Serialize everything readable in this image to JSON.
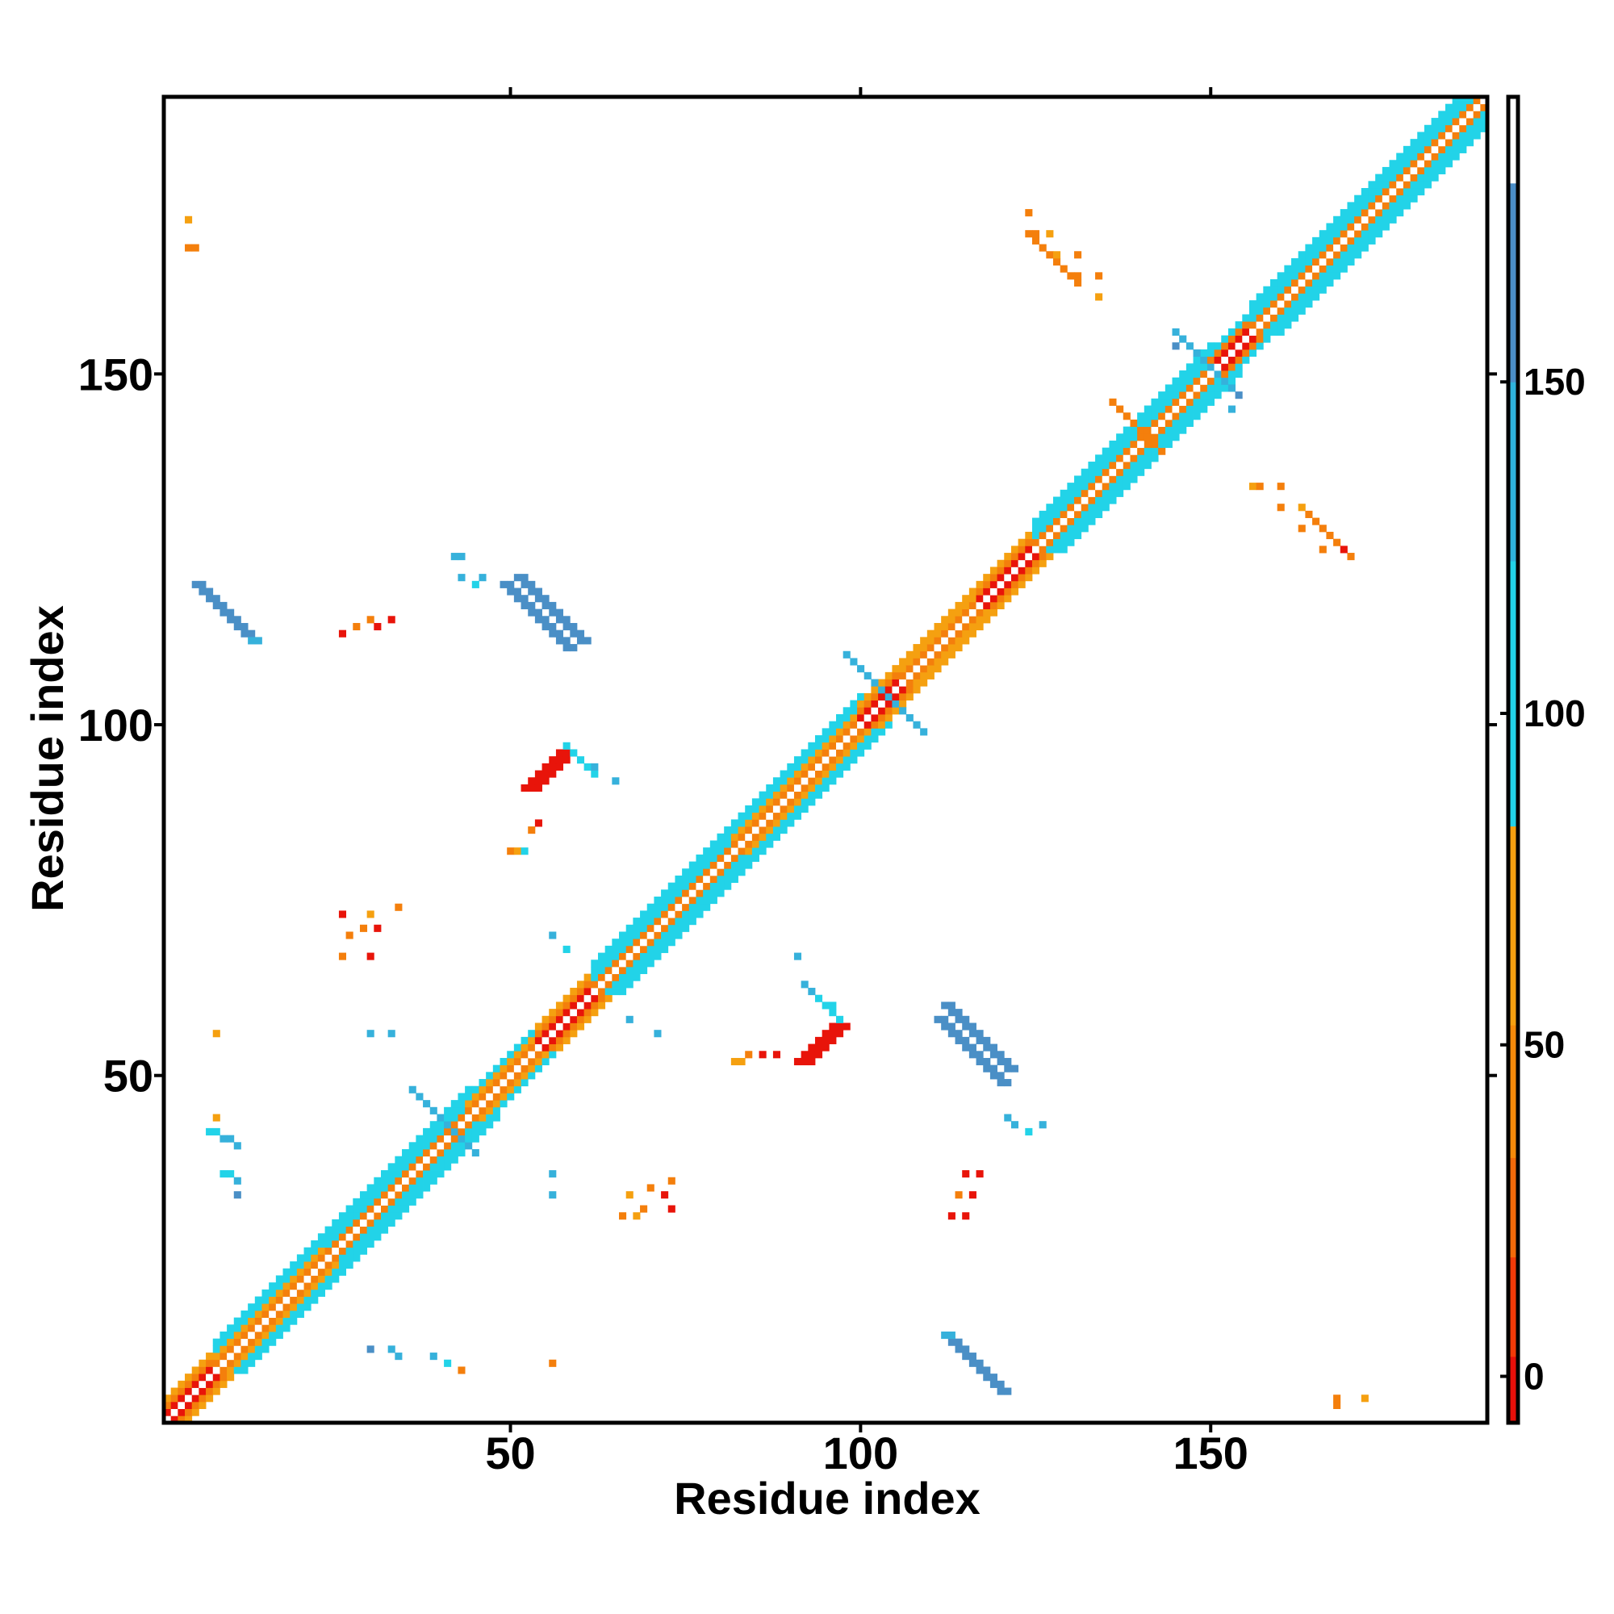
{
  "chart_data": {
    "type": "heatmap",
    "title": "",
    "xlabel": "Residue index",
    "ylabel": "Residue index",
    "xlim": [
      0.5,
      189.5
    ],
    "ylim": [
      0.5,
      189.5
    ],
    "n_residues": 189,
    "x_ticks": [
      "50",
      "100",
      "150"
    ],
    "y_ticks": [
      "50",
      "100",
      "150"
    ],
    "x_tick_values": [
      50,
      100,
      150
    ],
    "y_tick_values": [
      50,
      100,
      150
    ],
    "colorbar": {
      "ticks": [
        "0",
        "50",
        "100",
        "150"
      ],
      "tick_values": [
        0,
        50,
        100,
        150
      ],
      "range": [
        -7,
        193
      ],
      "bands": [
        {
          "from": -7,
          "to": 3,
          "color": "#e8100a"
        },
        {
          "from": 3,
          "to": 18,
          "color": "#f23a08"
        },
        {
          "from": 18,
          "to": 33,
          "color": "#f26a0a"
        },
        {
          "from": 33,
          "to": 53,
          "color": "#f58a0a"
        },
        {
          "from": 53,
          "to": 83,
          "color": "#f5a010"
        },
        {
          "from": 83,
          "to": 123,
          "color": "#22d3e8"
        },
        {
          "from": 123,
          "to": 150,
          "color": "#2fb3dc"
        },
        {
          "from": 150,
          "to": 180,
          "color": "#4b8ec8"
        },
        {
          "from": 180,
          "to": 193,
          "color": "#ffffff"
        }
      ]
    },
    "colors": {
      "red": "#e8140a",
      "redorange": "#f24a08",
      "orange": "#f47f0c",
      "amber": "#f5a010",
      "cyan": "#22d3e8",
      "skyblue": "#36b1db",
      "steelblue": "#4a8fc6"
    },
    "diagonal_bands": [
      {
        "from": 1,
        "to": 8,
        "core": "red",
        "inner": "orange",
        "outer": "amber"
      },
      {
        "from": 8,
        "to": 24,
        "core": "orange",
        "inner": "amber",
        "outer": "cyan"
      },
      {
        "from": 24,
        "to": 44,
        "core": "orange",
        "inner": "cyan",
        "outer": "cyan"
      },
      {
        "from": 44,
        "to": 54,
        "core": "orange",
        "inner": "amber",
        "outer": "cyan"
      },
      {
        "from": 54,
        "to": 62,
        "core": "red",
        "inner": "orange",
        "outer": "amber"
      },
      {
        "from": 62,
        "to": 82,
        "core": "orange",
        "inner": "cyan",
        "outer": "cyan"
      },
      {
        "from": 82,
        "to": 100,
        "core": "orange",
        "inner": "amber",
        "outer": "cyan"
      },
      {
        "from": 100,
        "to": 106,
        "core": "red",
        "inner": "orange",
        "outer": "amber"
      },
      {
        "from": 106,
        "to": 117,
        "core": "orange",
        "inner": "amber",
        "outer": "amber"
      },
      {
        "from": 117,
        "to": 125,
        "core": "red",
        "inner": "orange",
        "outer": "amber"
      },
      {
        "from": 125,
        "to": 150,
        "core": "orange",
        "inner": "cyan",
        "outer": "cyan"
      },
      {
        "from": 150,
        "to": 156,
        "core": "red",
        "inner": "orange",
        "outer": "cyan"
      },
      {
        "from": 156,
        "to": 189,
        "core": "orange",
        "inner": "cyan",
        "outer": "cyan"
      }
    ],
    "offdiagonal_segments": [
      {
        "x": 6,
        "y": 119,
        "dx": 1,
        "dy": -1,
        "n": 8,
        "w": 2,
        "color": "skyblue"
      },
      {
        "x": 119,
        "y": 6,
        "dx": -1,
        "dy": 1,
        "n": 8,
        "w": 2,
        "color": "skyblue"
      },
      {
        "x": 49,
        "y": 120,
        "dx": 1,
        "dy": -1,
        "n": 10,
        "w": 2,
        "color": "steelblue"
      },
      {
        "x": 120,
        "y": 49,
        "dx": -1,
        "dy": 1,
        "n": 10,
        "w": 2,
        "color": "steelblue"
      },
      {
        "x": 112,
        "y": 60,
        "dx": 1,
        "dy": -1,
        "n": 10,
        "w": 2,
        "color": "steelblue"
      },
      {
        "x": 60,
        "y": 112,
        "dx": -1,
        "dy": 1,
        "n": 10,
        "w": 2,
        "color": "steelblue"
      },
      {
        "x": 113,
        "y": 12,
        "dx": 1,
        "dy": -1,
        "n": 8,
        "w": 2,
        "color": "steelblue"
      },
      {
        "x": 12,
        "y": 113,
        "dx": -1,
        "dy": 1,
        "n": 8,
        "w": 2,
        "color": "steelblue"
      },
      {
        "x": 52,
        "y": 91,
        "dx": 1,
        "dy": 1,
        "n": 6,
        "w": 3,
        "color": "red"
      },
      {
        "x": 91,
        "y": 52,
        "dx": 1,
        "dy": 1,
        "n": 6,
        "w": 3,
        "color": "red"
      },
      {
        "x": 58,
        "y": 97,
        "dx": 1,
        "dy": -1,
        "n": 5,
        "w": 1,
        "color": "cyan"
      },
      {
        "x": 97,
        "y": 58,
        "dx": -1,
        "dy": 1,
        "n": 5,
        "w": 1,
        "color": "cyan"
      },
      {
        "x": 98,
        "y": 110,
        "dx": 1,
        "dy": -1,
        "n": 12,
        "w": 1,
        "color": "skyblue"
      },
      {
        "x": 36,
        "y": 48,
        "dx": 1,
        "dy": -1,
        "n": 10,
        "w": 1,
        "color": "skyblue"
      },
      {
        "x": 145,
        "y": 156,
        "dx": 1,
        "dy": -1,
        "n": 10,
        "w": 1,
        "color": "skyblue"
      },
      {
        "x": 136,
        "y": 146,
        "dx": 1,
        "dy": -1,
        "n": 8,
        "w": 1,
        "color": "orange"
      },
      {
        "x": 124,
        "y": 170,
        "dx": 1,
        "dy": -1,
        "n": 8,
        "w": 1,
        "color": "orange"
      },
      {
        "x": 170,
        "y": 124,
        "dx": -1,
        "dy": 1,
        "n": 8,
        "w": 1,
        "color": "orange"
      }
    ],
    "scattered_cells": [
      {
        "x": 4,
        "y": 168,
        "color": "orange"
      },
      {
        "x": 5,
        "y": 168,
        "color": "orange"
      },
      {
        "x": 4,
        "y": 172,
        "color": "amber"
      },
      {
        "x": 26,
        "y": 113,
        "color": "red"
      },
      {
        "x": 28,
        "y": 114,
        "color": "orange"
      },
      {
        "x": 30,
        "y": 115,
        "color": "orange"
      },
      {
        "x": 31,
        "y": 114,
        "color": "red"
      },
      {
        "x": 33,
        "y": 115,
        "color": "red"
      },
      {
        "x": 26,
        "y": 73,
        "color": "red"
      },
      {
        "x": 27,
        "y": 70,
        "color": "orange"
      },
      {
        "x": 29,
        "y": 71,
        "color": "orange"
      },
      {
        "x": 30,
        "y": 73,
        "color": "amber"
      },
      {
        "x": 31,
        "y": 71,
        "color": "red"
      },
      {
        "x": 26,
        "y": 67,
        "color": "orange"
      },
      {
        "x": 30,
        "y": 67,
        "color": "red"
      },
      {
        "x": 34,
        "y": 74,
        "color": "orange"
      },
      {
        "x": 8,
        "y": 56,
        "color": "amber"
      },
      {
        "x": 30,
        "y": 56,
        "color": "skyblue"
      },
      {
        "x": 33,
        "y": 56,
        "color": "skyblue"
      },
      {
        "x": 7,
        "y": 42,
        "color": "cyan"
      },
      {
        "x": 8,
        "y": 42,
        "color": "cyan"
      },
      {
        "x": 9,
        "y": 41,
        "color": "skyblue"
      },
      {
        "x": 10,
        "y": 41,
        "color": "skyblue"
      },
      {
        "x": 11,
        "y": 40,
        "color": "skyblue"
      },
      {
        "x": 8,
        "y": 44,
        "color": "amber"
      },
      {
        "x": 9,
        "y": 36,
        "color": "cyan"
      },
      {
        "x": 10,
        "y": 36,
        "color": "cyan"
      },
      {
        "x": 11,
        "y": 35,
        "color": "skyblue"
      },
      {
        "x": 11,
        "y": 33,
        "color": "steelblue"
      },
      {
        "x": 30,
        "y": 11,
        "color": "steelblue"
      },
      {
        "x": 33,
        "y": 11,
        "color": "skyblue"
      },
      {
        "x": 34,
        "y": 10,
        "color": "skyblue"
      },
      {
        "x": 39,
        "y": 10,
        "color": "skyblue"
      },
      {
        "x": 41,
        "y": 9,
        "color": "cyan"
      },
      {
        "x": 43,
        "y": 8,
        "color": "orange"
      },
      {
        "x": 56,
        "y": 9,
        "color": "orange"
      },
      {
        "x": 56,
        "y": 36,
        "color": "skyblue"
      },
      {
        "x": 56,
        "y": 33,
        "color": "skyblue"
      },
      {
        "x": 66,
        "y": 30,
        "color": "orange"
      },
      {
        "x": 67,
        "y": 33,
        "color": "amber"
      },
      {
        "x": 69,
        "y": 31,
        "color": "orange"
      },
      {
        "x": 70,
        "y": 34,
        "color": "orange"
      },
      {
        "x": 72,
        "y": 33,
        "color": "red"
      },
      {
        "x": 73,
        "y": 35,
        "color": "orange"
      },
      {
        "x": 73,
        "y": 31,
        "color": "red"
      },
      {
        "x": 68,
        "y": 30,
        "color": "amber"
      },
      {
        "x": 113,
        "y": 30,
        "color": "red"
      },
      {
        "x": 115,
        "y": 30,
        "color": "red"
      },
      {
        "x": 114,
        "y": 33,
        "color": "orange"
      },
      {
        "x": 116,
        "y": 33,
        "color": "red"
      },
      {
        "x": 115,
        "y": 36,
        "color": "red"
      },
      {
        "x": 117,
        "y": 36,
        "color": "red"
      },
      {
        "x": 121,
        "y": 44,
        "color": "skyblue"
      },
      {
        "x": 122,
        "y": 43,
        "color": "skyblue"
      },
      {
        "x": 126,
        "y": 43,
        "color": "skyblue"
      },
      {
        "x": 124,
        "y": 42,
        "color": "cyan"
      },
      {
        "x": 82,
        "y": 52,
        "color": "amber"
      },
      {
        "x": 83,
        "y": 52,
        "color": "amber"
      },
      {
        "x": 84,
        "y": 53,
        "color": "orange"
      },
      {
        "x": 86,
        "y": 53,
        "color": "red"
      },
      {
        "x": 88,
        "y": 53,
        "color": "red"
      },
      {
        "x": 50,
        "y": 82,
        "color": "orange"
      },
      {
        "x": 51,
        "y": 82,
        "color": "amber"
      },
      {
        "x": 52,
        "y": 82,
        "color": "cyan"
      },
      {
        "x": 53,
        "y": 85,
        "color": "orange"
      },
      {
        "x": 54,
        "y": 86,
        "color": "red"
      },
      {
        "x": 62,
        "y": 94,
        "color": "skyblue"
      },
      {
        "x": 65,
        "y": 92,
        "color": "skyblue"
      },
      {
        "x": 56,
        "y": 70,
        "color": "skyblue"
      },
      {
        "x": 58,
        "y": 68,
        "color": "cyan"
      },
      {
        "x": 67,
        "y": 58,
        "color": "skyblue"
      },
      {
        "x": 71,
        "y": 56,
        "color": "skyblue"
      },
      {
        "x": 91,
        "y": 67,
        "color": "skyblue"
      },
      {
        "x": 92,
        "y": 63,
        "color": "skyblue"
      },
      {
        "x": 93,
        "y": 62,
        "color": "skyblue"
      },
      {
        "x": 94,
        "y": 61,
        "color": "cyan"
      },
      {
        "x": 96,
        "y": 60,
        "color": "cyan"
      },
      {
        "x": 42,
        "y": 124,
        "color": "skyblue"
      },
      {
        "x": 43,
        "y": 124,
        "color": "skyblue"
      },
      {
        "x": 43,
        "y": 121,
        "color": "skyblue"
      },
      {
        "x": 45,
        "y": 120,
        "color": "cyan"
      },
      {
        "x": 46,
        "y": 121,
        "color": "skyblue"
      },
      {
        "x": 124,
        "y": 173,
        "color": "orange"
      },
      {
        "x": 125,
        "y": 170,
        "color": "orange"
      },
      {
        "x": 127,
        "y": 170,
        "color": "amber"
      },
      {
        "x": 128,
        "y": 167,
        "color": "amber"
      },
      {
        "x": 131,
        "y": 167,
        "color": "orange"
      },
      {
        "x": 131,
        "y": 164,
        "color": "orange"
      },
      {
        "x": 134,
        "y": 164,
        "color": "orange"
      },
      {
        "x": 134,
        "y": 161,
        "color": "amber"
      },
      {
        "x": 156,
        "y": 134,
        "color": "amber"
      },
      {
        "x": 157,
        "y": 134,
        "color": "orange"
      },
      {
        "x": 160,
        "y": 134,
        "color": "orange"
      },
      {
        "x": 160,
        "y": 131,
        "color": "orange"
      },
      {
        "x": 163,
        "y": 131,
        "color": "amber"
      },
      {
        "x": 163,
        "y": 128,
        "color": "orange"
      },
      {
        "x": 166,
        "y": 128,
        "color": "orange"
      },
      {
        "x": 166,
        "y": 125,
        "color": "orange"
      },
      {
        "x": 169,
        "y": 125,
        "color": "red"
      },
      {
        "x": 168,
        "y": 3,
        "color": "orange"
      },
      {
        "x": 172,
        "y": 4,
        "color": "amber"
      },
      {
        "x": 168,
        "y": 4,
        "color": "orange"
      },
      {
        "x": 154,
        "y": 147,
        "color": "steelblue"
      },
      {
        "x": 153,
        "y": 145,
        "color": "skyblue"
      },
      {
        "x": 145,
        "y": 154,
        "color": "steelblue"
      }
    ]
  }
}
